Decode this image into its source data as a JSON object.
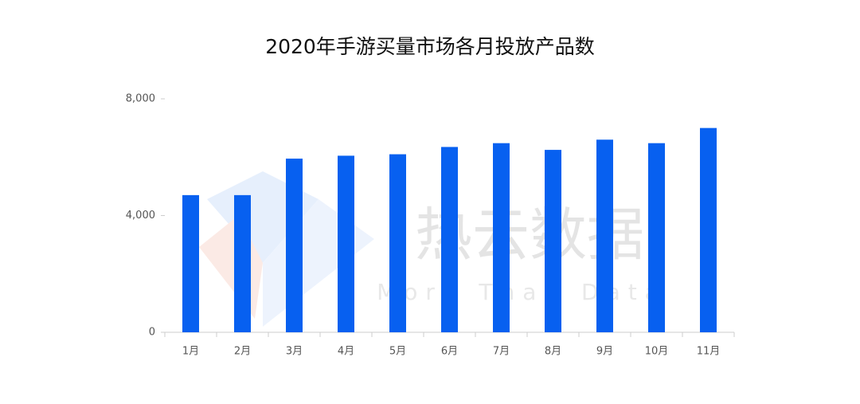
{
  "chart_data": {
    "type": "bar",
    "title": "2020年手游买量市场各月投放产品数",
    "categories": [
      "1月",
      "2月",
      "3月",
      "4月",
      "5月",
      "6月",
      "7月",
      "8月",
      "9月",
      "10月",
      "11月"
    ],
    "values": [
      4700,
      4700,
      5950,
      6050,
      6100,
      6350,
      6480,
      6250,
      6600,
      6480,
      7000
    ],
    "color": "#0760f0",
    "ylim": [
      0,
      8000
    ],
    "yticks": [
      0,
      {
        "value": 4000,
        "label": "4,000"
      },
      {
        "value": 8000,
        "label": "8,000"
      }
    ],
    "grid": false,
    "watermark": {
      "title": "热云数据",
      "subtitle": "More Than Data"
    }
  }
}
